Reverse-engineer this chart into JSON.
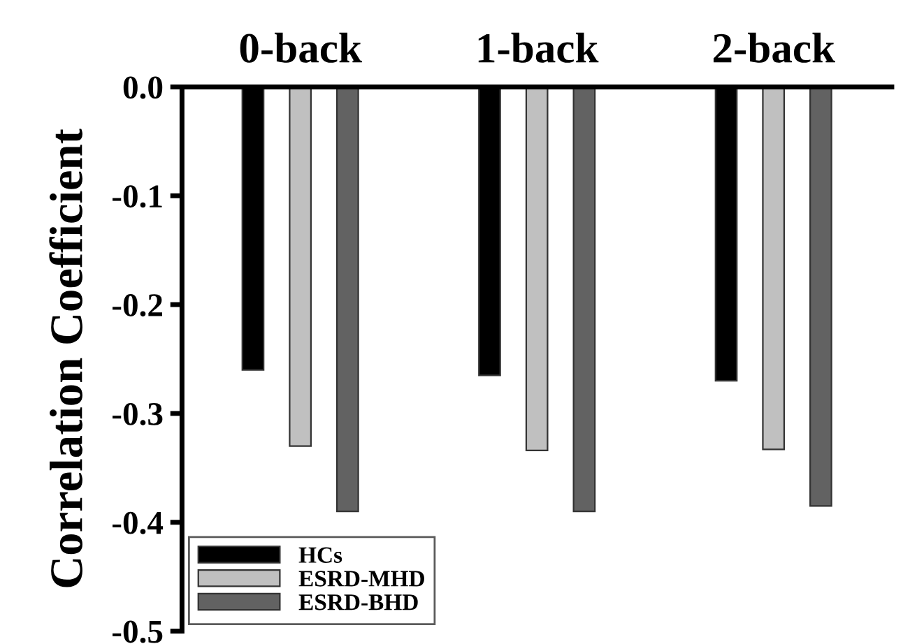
{
  "chart_data": {
    "type": "bar",
    "ylabel": "Correlation Coefficient",
    "categories": [
      "0-back",
      "1-back",
      "2-back"
    ],
    "series": [
      {
        "name": "HCs",
        "color": "#000000",
        "values": [
          -0.26,
          -0.265,
          -0.27
        ]
      },
      {
        "name": "ESRD-MHD",
        "color": "#c0c0c0",
        "values": [
          -0.33,
          -0.334,
          -0.333
        ]
      },
      {
        "name": "ESRD-BHD",
        "color": "#626262",
        "values": [
          -0.39,
          -0.39,
          -0.385
        ]
      }
    ],
    "ylim": [
      -0.5,
      0.0
    ],
    "yticks": [
      {
        "value": -0.5,
        "label": "-0.5"
      },
      {
        "value": -0.4,
        "label": "-0.4"
      },
      {
        "value": -0.3,
        "label": "-0.3"
      },
      {
        "value": -0.2,
        "label": "-0.2"
      },
      {
        "value": -0.1,
        "label": "-0.1"
      },
      {
        "value": 0.0,
        "label": "0.0"
      }
    ],
    "grid": false,
    "legend": "bottom left"
  }
}
